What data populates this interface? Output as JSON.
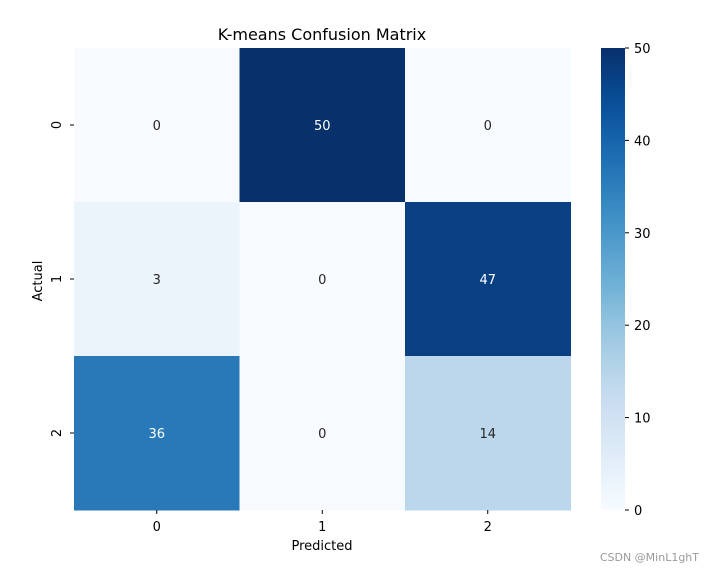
{
  "chart_data": {
    "type": "heatmap",
    "title": "K-means Confusion Matrix",
    "xlabel": "Predicted",
    "ylabel": "Actual",
    "x_categories": [
      "0",
      "1",
      "2"
    ],
    "y_categories": [
      "0",
      "1",
      "2"
    ],
    "values": [
      [
        0,
        50,
        0
      ],
      [
        3,
        0,
        47
      ],
      [
        36,
        0,
        14
      ]
    ],
    "colormap": "Blues",
    "vmin": 0,
    "vmax": 50,
    "colorbar_ticks": [
      0,
      10,
      20,
      30,
      40,
      50
    ],
    "colors": {
      "low": "#f7fbff",
      "high": "#08306b",
      "annotation_light": "#ffffff",
      "annotation_dark": "#262626"
    }
  },
  "watermark": "CSDN @MinL1ghT"
}
